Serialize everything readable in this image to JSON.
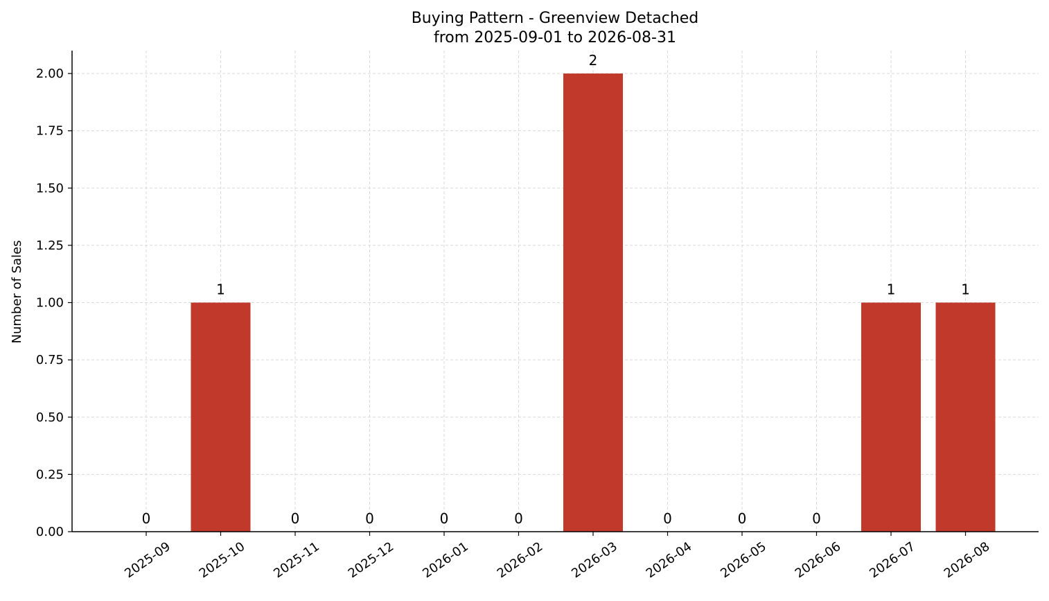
{
  "chart_data": {
    "type": "bar",
    "title": "Buying Pattern - Greenview Detached",
    "subtitle": "from 2025-09-01 to 2026-08-31",
    "xlabel": "",
    "ylabel": "Number of Sales",
    "categories": [
      "2025-09",
      "2025-10",
      "2025-11",
      "2025-12",
      "2026-01",
      "2026-02",
      "2026-03",
      "2026-04",
      "2026-05",
      "2026-06",
      "2026-07",
      "2026-08"
    ],
    "values": [
      0,
      1,
      0,
      0,
      0,
      0,
      2,
      0,
      0,
      0,
      1,
      1
    ],
    "data_labels": [
      "0",
      "1",
      "0",
      "0",
      "0",
      "0",
      "2",
      "0",
      "0",
      "0",
      "1",
      "1"
    ],
    "yticks": [
      "0.00",
      "0.25",
      "0.50",
      "0.75",
      "1.00",
      "1.25",
      "1.50",
      "1.75",
      "2.00"
    ],
    "ylim": [
      0,
      2.1
    ],
    "grid": true,
    "legend": "none",
    "bar_color": "#c0392b",
    "grid_color": "#d9d9d9",
    "axis_color": "#000000"
  }
}
